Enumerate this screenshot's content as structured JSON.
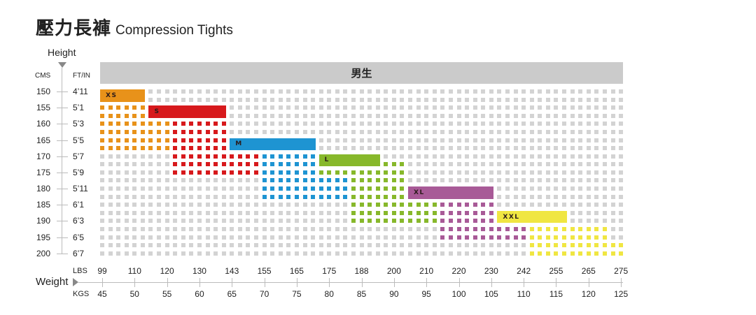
{
  "title": {
    "zh": "壓力長褲",
    "en": "Compression Tights"
  },
  "header": "男生",
  "chart_data": {
    "type": "heatmap",
    "title": "壓力長褲 Compression Tights",
    "group": "男生",
    "y_axis": {
      "label": "Height",
      "units_left": "CMS",
      "units_right": "FT/IN",
      "cm": [
        "150",
        "155",
        "160",
        "165",
        "170",
        "175",
        "180",
        "185",
        "190",
        "195",
        "200"
      ],
      "ftin": [
        "4’11",
        "5’1",
        "5’3",
        "5’5",
        "5’7",
        "5’9",
        "5’11",
        "6’1",
        "6’3",
        "6’5",
        "6’7"
      ],
      "range_cm": [
        150,
        200
      ],
      "step_cm": 2.5
    },
    "x_axis": {
      "label": "Weight",
      "units_top": "LBS",
      "units_bottom": "KGS",
      "lbs": [
        "99",
        "110",
        "120",
        "130",
        "143",
        "155",
        "165",
        "175",
        "188",
        "200",
        "210",
        "220",
        "230",
        "242",
        "255",
        "265",
        "275"
      ],
      "kgs": [
        "45",
        "50",
        "55",
        "60",
        "65",
        "70",
        "75",
        "80",
        "85",
        "90",
        "95",
        "100",
        "105",
        "110",
        "115",
        "120",
        "125"
      ],
      "range_kg": [
        45,
        125
      ],
      "step_kg": 1.25
    },
    "background_color": "#d3d3d3",
    "sizes": [
      {
        "label": "XS",
        "color": "#e8921a",
        "bar": {
          "kg": [
            45,
            51.25
          ],
          "cm": [
            150,
            152.5
          ]
        },
        "regions": [
          {
            "kg": [
              45,
              51.25
            ],
            "cm": [
              155,
              157.5
            ]
          },
          {
            "kg": [
              45,
              55
            ],
            "cm": [
              160,
              167.5
            ]
          }
        ]
      },
      {
        "label": "S",
        "color": "#d7191c",
        "bar": {
          "kg": [
            52.5,
            63.75
          ],
          "cm": [
            155,
            157.5
          ]
        },
        "regions": [
          {
            "kg": [
              56.25,
              63.75
            ],
            "cm": [
              160,
              167.5
            ]
          },
          {
            "kg": [
              56.25,
              68.75
            ],
            "cm": [
              170,
              175
            ]
          }
        ]
      },
      {
        "label": "M",
        "color": "#1e94d2",
        "bar": {
          "kg": [
            65,
            77.5
          ],
          "cm": [
            165,
            167.5
          ]
        },
        "regions": [
          {
            "kg": [
              70,
              77.5
            ],
            "cm": [
              170,
              175
            ]
          },
          {
            "kg": [
              70,
              82.5
            ],
            "cm": [
              177.5,
              182.5
            ]
          }
        ]
      },
      {
        "label": "L",
        "color": "#87b82b",
        "bar": {
          "kg": [
            78.75,
            87.5
          ],
          "cm": [
            170,
            172.5
          ]
        },
        "regions": [
          {
            "kg": [
              88.75,
              91.25
            ],
            "cm": [
              172.5,
              172.5
            ]
          },
          {
            "kg": [
              78.75,
              91.25
            ],
            "cm": [
              175,
              175
            ]
          },
          {
            "kg": [
              83.75,
              91.25
            ],
            "cm": [
              177.5,
              182.5
            ]
          },
          {
            "kg": [
              83.75,
              96.25
            ],
            "cm": [
              185,
              190
            ]
          }
        ]
      },
      {
        "label": "XL",
        "color": "#a85a97",
        "bar": {
          "kg": [
            92.5,
            105
          ],
          "cm": [
            180,
            182.5
          ]
        },
        "regions": [
          {
            "kg": [
              97.5,
              105
            ],
            "cm": [
              185,
              190
            ]
          },
          {
            "kg": [
              97.5,
              110
            ],
            "cm": [
              192.5,
              195
            ]
          }
        ]
      },
      {
        "label": "XXL",
        "color": "#f0e642",
        "bar": {
          "kg": [
            106.25,
            116.25
          ],
          "cm": [
            187.5,
            190
          ]
        },
        "regions": [
          {
            "kg": [
              111.25,
              122.5
            ],
            "cm": [
              192.5,
              195
            ]
          },
          {
            "kg": [
              111.25,
              125
            ],
            "cm": [
              197.5,
              200
            ]
          }
        ]
      }
    ]
  }
}
